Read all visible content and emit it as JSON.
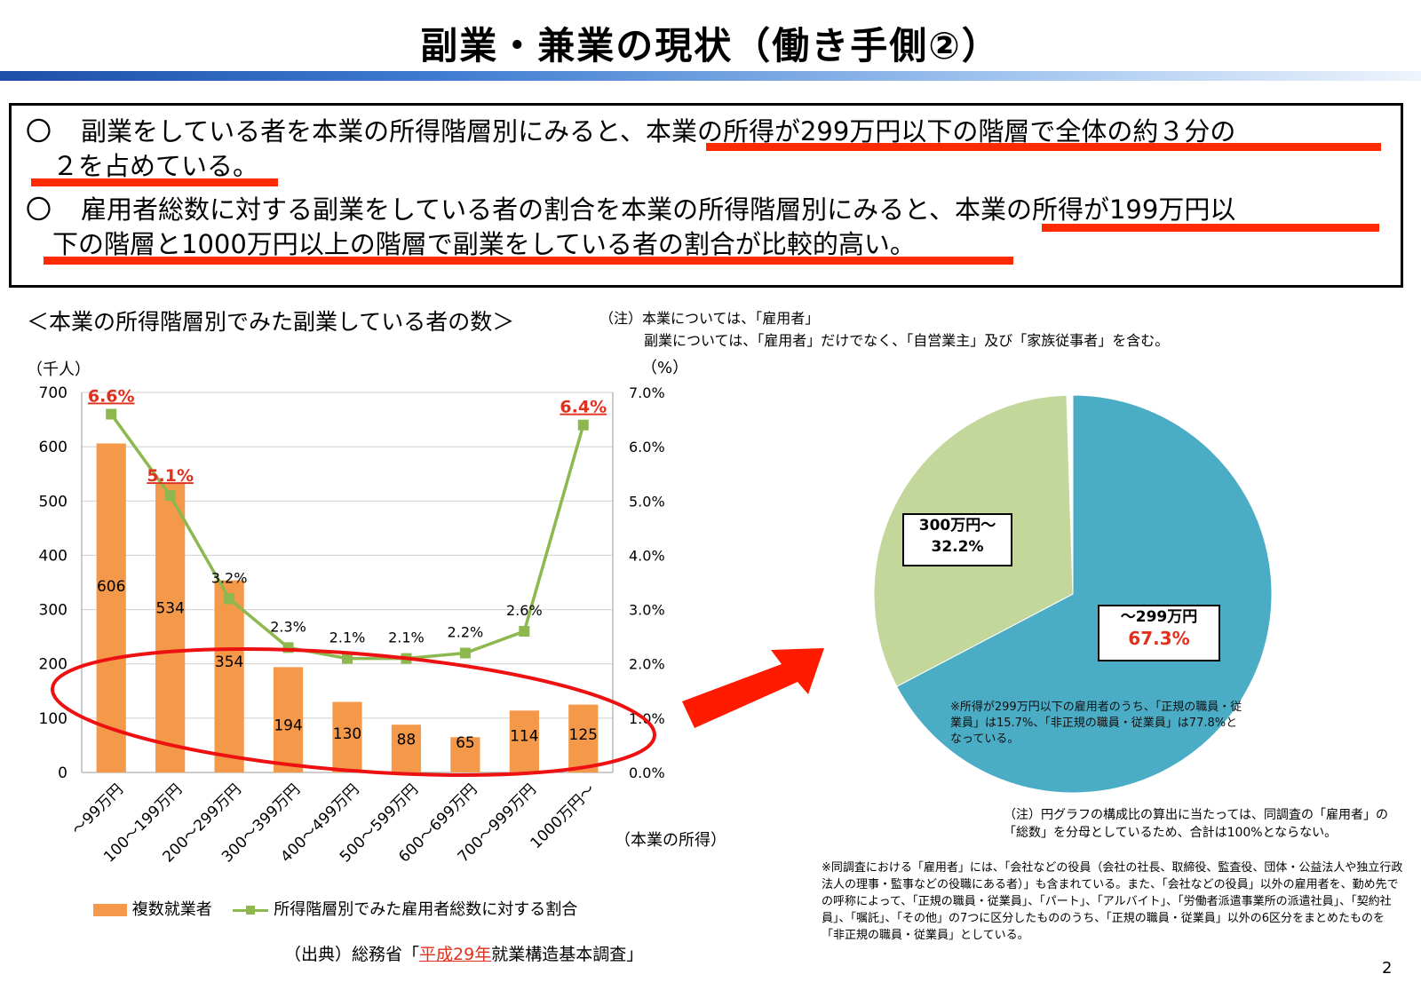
{
  "title": "副業・兼業の現状（働き手側②）",
  "summary": {
    "bullet_mark": "〇",
    "bullet1_line1": "副業をしている者を本業の所得階層別にみると、本業の所得が299万円以下の階層で全体の約３分の",
    "bullet1_line2": "２を占めている。",
    "bullet2_line1": "雇用者総数に対する副業をしている者の割合を本業の所得階層別にみると、本業の所得が199万円以",
    "bullet2_line2": "下の階層と1000万円以上の階層で副業をしている者の割合が比較的高い。",
    "underline_color": "#ff2a00"
  },
  "chart_heading": "＜本業の所得階層別でみた副業している者の数＞",
  "notes": {
    "line1": "（注）本業については、「雇用者」",
    "line2": "副業については、「雇用者」だけでなく、「自営業主」及び「家族従事者」を含む。"
  },
  "chart_data": [
    {
      "type": "bar",
      "categories": [
        "～99万円",
        "100～199万円",
        "200～299万円",
        "300～399万円",
        "400～499万円",
        "500～599万円",
        "600～699万円",
        "700～999万円",
        "1000万円～"
      ],
      "series": [
        {
          "name": "複数就業者",
          "axis": "left",
          "values": [
            606,
            534,
            354,
            194,
            130,
            88,
            65,
            114,
            125
          ],
          "color": "#f4994a",
          "value_labels": [
            "606",
            "534",
            "354",
            "194",
            "130",
            "88",
            "65",
            "114",
            "125"
          ]
        },
        {
          "name": "所得階層別でみた雇用者総数に対する割合",
          "type": "line",
          "axis": "right",
          "values": [
            6.6,
            5.1,
            3.2,
            2.3,
            2.1,
            2.1,
            2.2,
            2.6,
            6.4
          ],
          "color": "#8cb84f",
          "value_labels": [
            "6.6%",
            "5.1%",
            "3.2%",
            "2.3%",
            "2.1%",
            "2.1%",
            "2.2%",
            "2.6%",
            "6.4%"
          ],
          "highlighted_labels": [
            0,
            1,
            8
          ]
        }
      ],
      "y_left_unit": "（千人）",
      "y_right_unit": "（%）",
      "x_unit": "（本業の所得）",
      "ylim_left": [
        0,
        700
      ],
      "ylim_right": [
        0,
        7.0
      ],
      "y_left_ticks": [
        "0",
        "100",
        "200",
        "300",
        "400",
        "500",
        "600",
        "700"
      ],
      "y_right_ticks": [
        "0.0%",
        "1.0%",
        "2.0%",
        "3.0%",
        "4.0%",
        "5.0%",
        "6.0%",
        "7.0%"
      ],
      "grid": true,
      "legend_position": "bottom"
    },
    {
      "type": "pie",
      "slices": [
        {
          "label": "～299万円",
          "value": 67.3,
          "display": "67.3%",
          "color": "#4bacc6"
        },
        {
          "label": "300万円～",
          "value": 32.2,
          "display": "32.2%",
          "color": "#c4d79b"
        }
      ]
    }
  ],
  "legend": {
    "bar_label": "複数就業者",
    "line_label": "所得階層別でみた雇用者総数に対する割合"
  },
  "source": {
    "prefix": "（出典）総務省「",
    "highlight": "平成29年",
    "suffix": "就業構造基本調査」"
  },
  "pie_notes": {
    "inside": "※所得が299万円以下の雇用者のうち、「正規の職員・従業員」は15.7%、「非正規の職員・従業員」は77.8%となっている。",
    "note1": "（注）円グラフの構成比の算出に当たっては、同調査の「雇用者」の「総数」を分母としているため、合計は100%とならない。",
    "note2": "※同調査における「雇用者」には、「会社などの役員（会社の社長、取締役、監査役、団体・公益法人や独立行政法人の理事・監事などの役職にある者）」も含まれている。また、「会社などの役員」以外の雇用者を、勤め先での呼称によって、「正規の職員・従業員」、「パート」、「アルバイト」、「労働者派遣事業所の派遣社員」、「契約社員」、「嘱託」、「その他」の7つに区分したもののうち、「正規の職員・従業員」以外の6区分をまとめたものを「非正規の職員・従業員」としている。"
  },
  "highlight_color": "#e0301e",
  "page_number": "2"
}
